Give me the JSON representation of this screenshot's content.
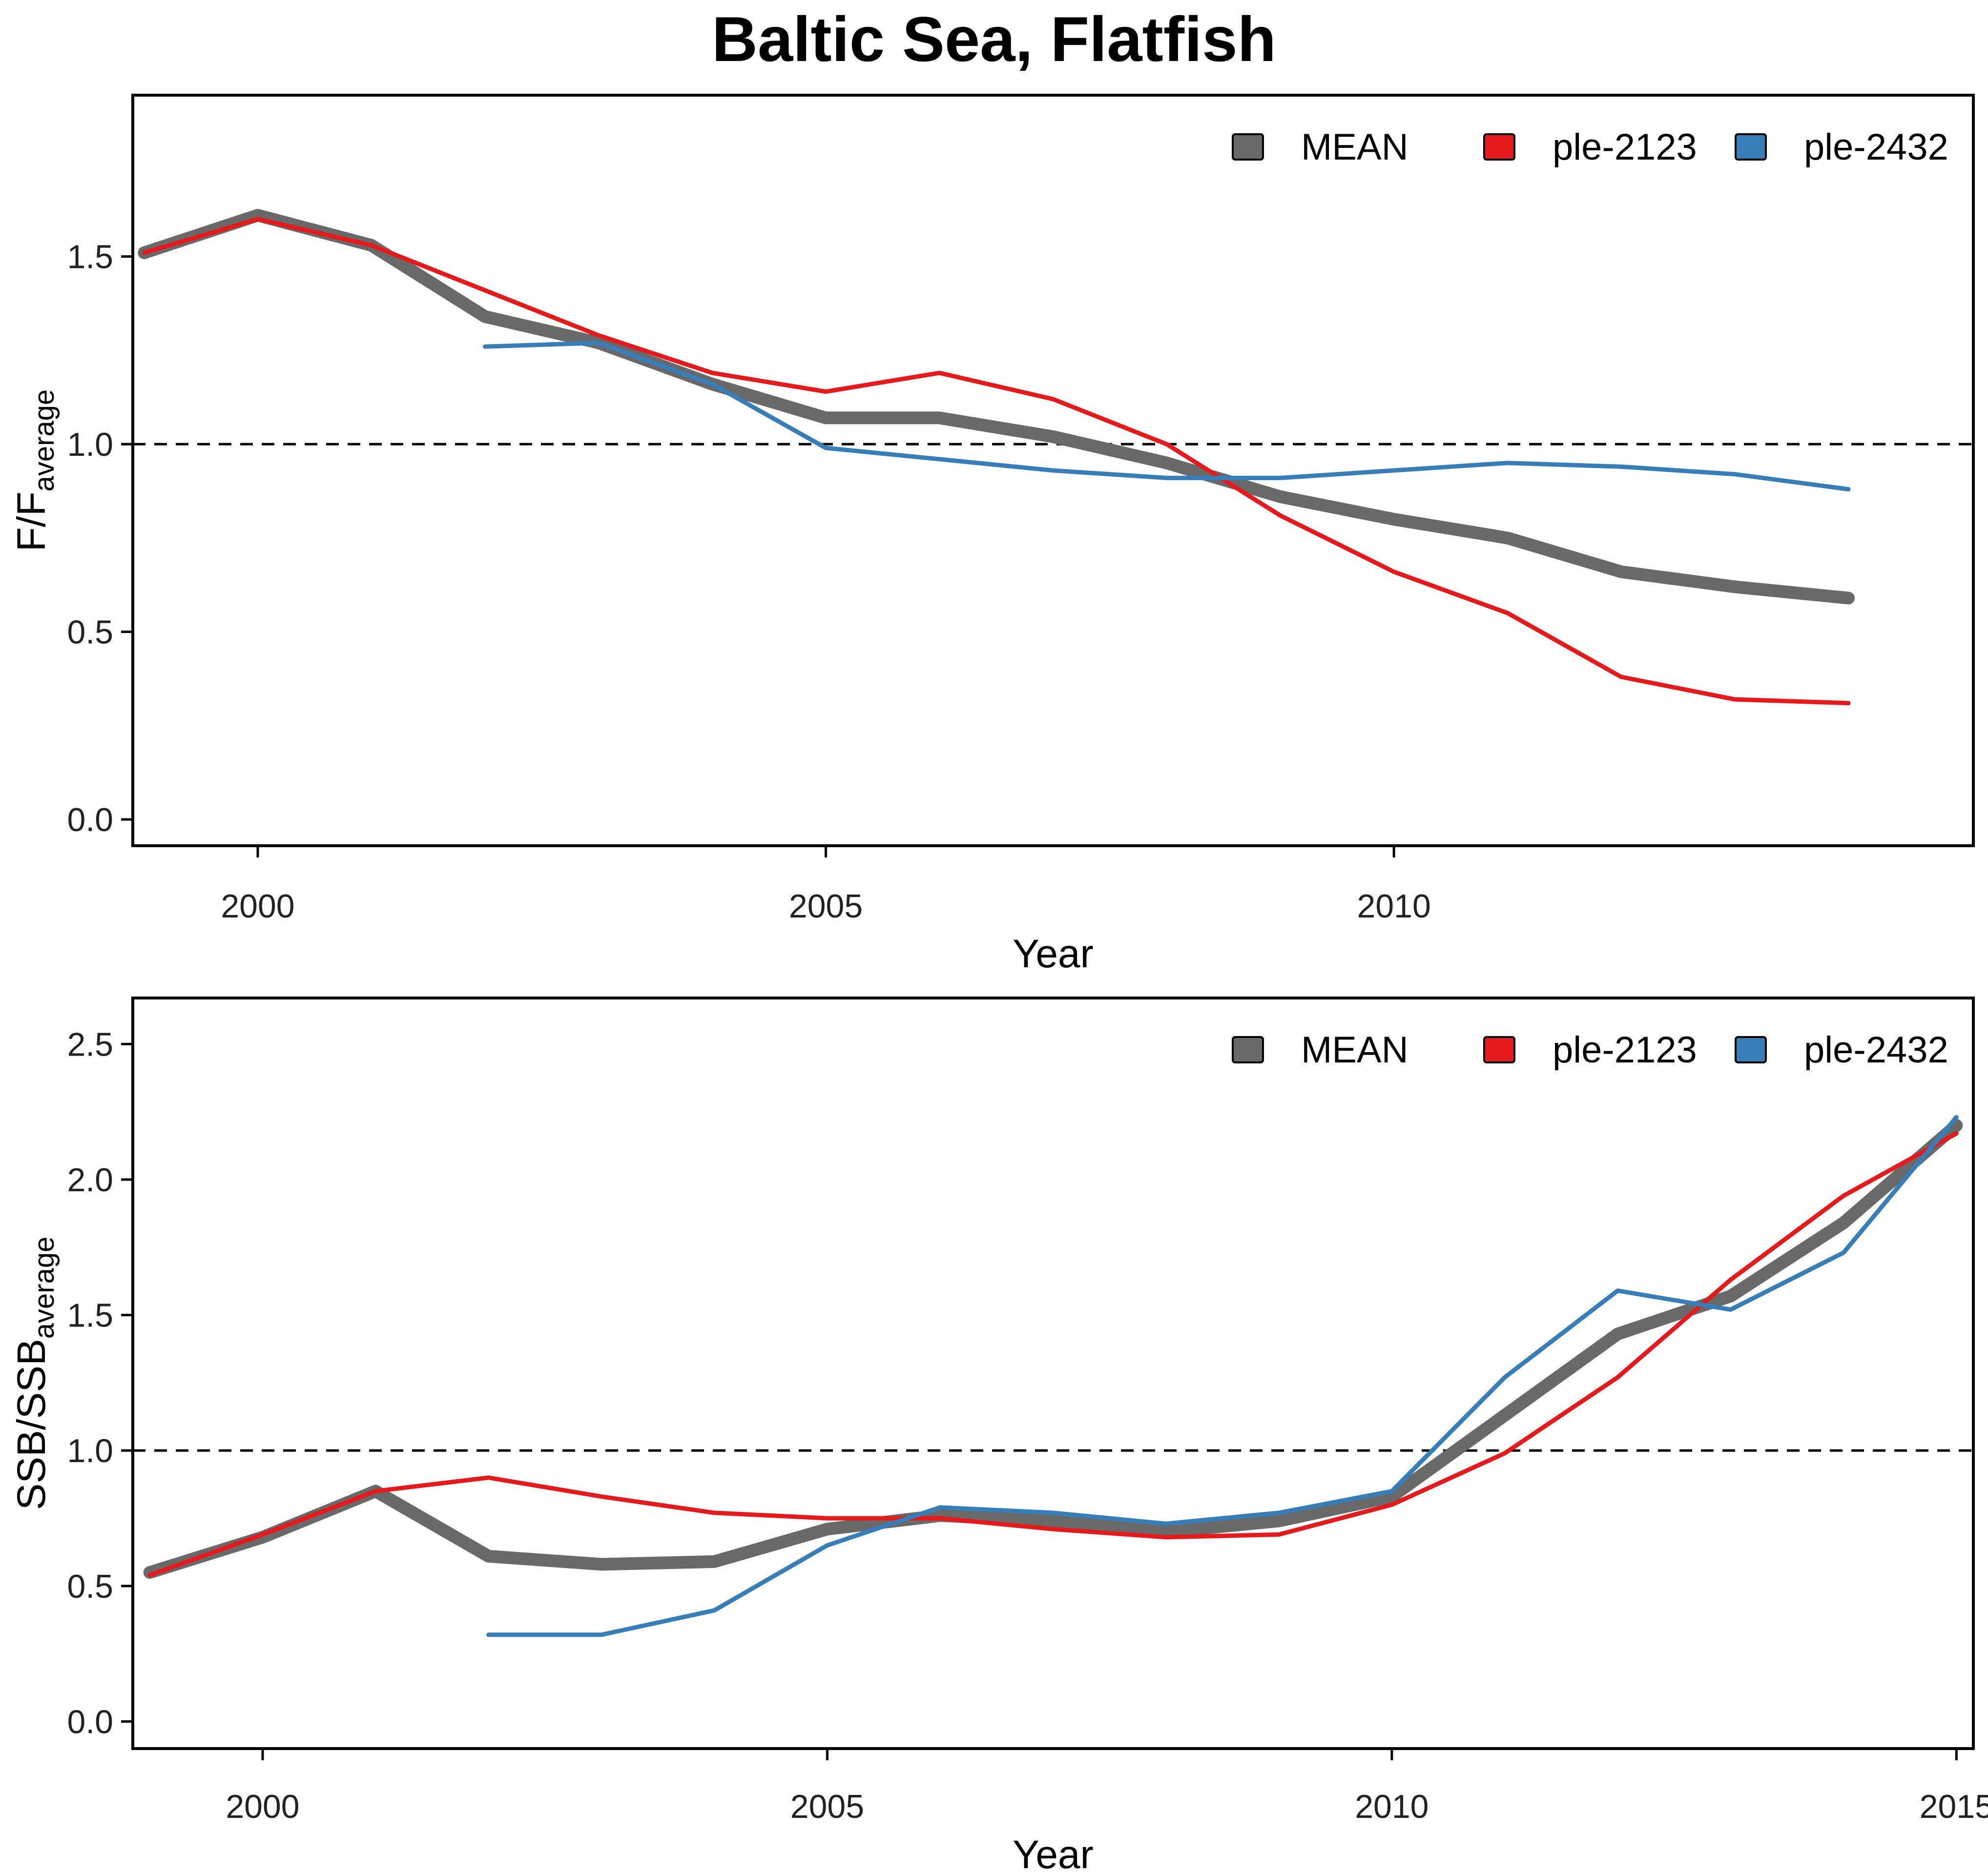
{
  "title": "Baltic Sea, Flatfish",
  "chart_data": [
    {
      "type": "line",
      "xlabel": "Year",
      "ylabel_main": "F/F",
      "ylabel_sub": "average",
      "xlim": [
        1998.9,
        2015.1
      ],
      "ylim": [
        -0.07,
        1.93
      ],
      "x_ticks": [
        "2000",
        "2005",
        "2010"
      ],
      "y_ticks": [
        "0.0",
        "0.5",
        "1.0",
        "1.5"
      ],
      "reference_line": 1.0,
      "legend_position": "top-right",
      "series": [
        {
          "name": "MEAN",
          "color": "#696969",
          "x": [
            1999,
            2000,
            2001,
            2002,
            2003,
            2004,
            2005,
            2006,
            2007,
            2008,
            2009,
            2010,
            2011,
            2012,
            2013,
            2014
          ],
          "y": [
            1.51,
            1.61,
            1.53,
            1.34,
            1.27,
            1.16,
            1.07,
            1.07,
            1.02,
            0.95,
            0.86,
            0.8,
            0.75,
            0.66,
            0.62,
            0.59
          ]
        },
        {
          "name": "ple-2123",
          "color": "#e41a1c",
          "x": [
            1999,
            2000,
            2001,
            2002,
            2003,
            2004,
            2005,
            2006,
            2007,
            2008,
            2009,
            2010,
            2011,
            2012,
            2013,
            2014
          ],
          "y": [
            1.51,
            1.6,
            1.53,
            1.41,
            1.29,
            1.19,
            1.14,
            1.19,
            1.12,
            1.0,
            0.81,
            0.66,
            0.55,
            0.38,
            0.32,
            0.31
          ]
        },
        {
          "name": "ple-2432",
          "color": "#377eb8",
          "x": [
            2002,
            2003,
            2004,
            2005,
            2006,
            2007,
            2008,
            2009,
            2010,
            2011,
            2012,
            2013,
            2014
          ],
          "y": [
            1.26,
            1.27,
            1.16,
            0.99,
            0.96,
            0.93,
            0.91,
            0.91,
            0.93,
            0.95,
            0.94,
            0.92,
            0.88
          ]
        }
      ]
    },
    {
      "type": "line",
      "xlabel": "Year",
      "ylabel_main": "SSB/SSB",
      "ylabel_sub": "average",
      "xlim": [
        1998.85,
        2015.15
      ],
      "ylim": [
        -0.1,
        2.67
      ],
      "x_ticks": [
        "2000",
        "2005",
        "2010",
        "2015"
      ],
      "y_ticks": [
        "0.0",
        "0.5",
        "1.0",
        "1.5",
        "2.0",
        "2.5"
      ],
      "reference_line": 1.0,
      "legend_position": "top-right",
      "series": [
        {
          "name": "MEAN",
          "color": "#696969",
          "x": [
            1999,
            2000,
            2001,
            2002,
            2003,
            2004,
            2005,
            2006,
            2007,
            2008,
            2009,
            2010,
            2011,
            2012,
            2013,
            2014,
            2015
          ],
          "y": [
            0.55,
            0.68,
            0.85,
            0.61,
            0.58,
            0.59,
            0.71,
            0.76,
            0.74,
            0.7,
            0.74,
            0.83,
            1.13,
            1.43,
            1.57,
            1.84,
            2.2
          ]
        },
        {
          "name": "ple-2123",
          "color": "#e41a1c",
          "x": [
            1999,
            2000,
            2001,
            2002,
            2003,
            2004,
            2005,
            2006,
            2007,
            2008,
            2009,
            2010,
            2011,
            2012,
            2013,
            2014,
            2015
          ],
          "y": [
            0.54,
            0.69,
            0.85,
            0.9,
            0.83,
            0.77,
            0.75,
            0.75,
            0.71,
            0.68,
            0.69,
            0.8,
            0.99,
            1.27,
            1.63,
            1.94,
            2.17
          ]
        },
        {
          "name": "ple-2432",
          "color": "#377eb8",
          "x": [
            2002,
            2003,
            2004,
            2005,
            2006,
            2007,
            2008,
            2009,
            2010,
            2011,
            2012,
            2013,
            2014,
            2015
          ],
          "y": [
            0.32,
            0.32,
            0.41,
            0.65,
            0.79,
            0.77,
            0.73,
            0.77,
            0.85,
            1.27,
            1.59,
            1.52,
            1.73,
            2.23
          ]
        }
      ]
    }
  ]
}
